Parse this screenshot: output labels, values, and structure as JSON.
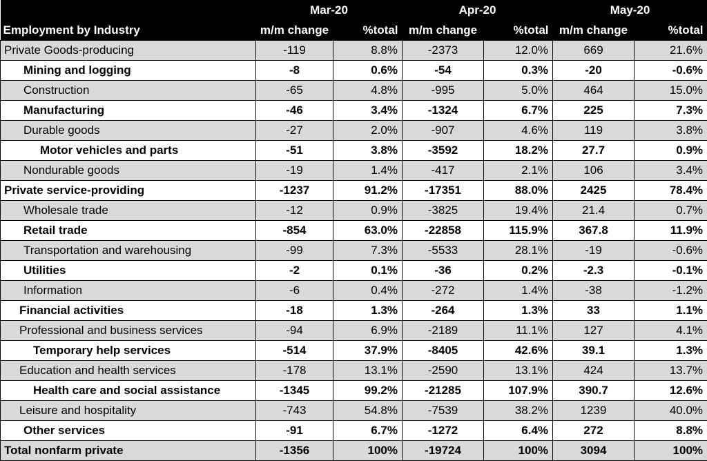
{
  "header": {
    "months": [
      "Mar-20",
      "Apr-20",
      "May-20"
    ],
    "label": "Employment by Industry",
    "change_label": "m/m change",
    "pct_label": "%total"
  },
  "rows": [
    {
      "label": "Private Goods-producing",
      "mar_change": "-119",
      "mar_pct": "8.8%",
      "apr_change": "-2373",
      "apr_pct": "12.0%",
      "may_change": "669",
      "may_pct": "21.6%"
    },
    {
      "label": "Mining and logging",
      "mar_change": "-8",
      "mar_pct": "0.6%",
      "apr_change": "-54",
      "apr_pct": "0.3%",
      "may_change": "-20",
      "may_pct": "-0.6%"
    },
    {
      "label": "Construction",
      "mar_change": "-65",
      "mar_pct": "4.8%",
      "apr_change": "-995",
      "apr_pct": "5.0%",
      "may_change": "464",
      "may_pct": "15.0%"
    },
    {
      "label": "Manufacturing",
      "mar_change": "-46",
      "mar_pct": "3.4%",
      "apr_change": "-1324",
      "apr_pct": "6.7%",
      "may_change": "225",
      "may_pct": "7.3%"
    },
    {
      "label": "Durable goods",
      "mar_change": "-27",
      "mar_pct": "2.0%",
      "apr_change": "-907",
      "apr_pct": "4.6%",
      "may_change": "119",
      "may_pct": "3.8%"
    },
    {
      "label": "Motor vehicles and parts",
      "mar_change": "-51",
      "mar_pct": "3.8%",
      "apr_change": "-3592",
      "apr_pct": "18.2%",
      "may_change": "27.7",
      "may_pct": "0.9%"
    },
    {
      "label": "Nondurable goods",
      "mar_change": "-19",
      "mar_pct": "1.4%",
      "apr_change": "-417",
      "apr_pct": "2.1%",
      "may_change": "106",
      "may_pct": "3.4%"
    },
    {
      "label": "Private service-providing",
      "mar_change": "-1237",
      "mar_pct": "91.2%",
      "apr_change": "-17351",
      "apr_pct": "88.0%",
      "may_change": "2425",
      "may_pct": "78.4%"
    },
    {
      "label": "Wholesale trade",
      "mar_change": "-12",
      "mar_pct": "0.9%",
      "apr_change": "-3825",
      "apr_pct": "19.4%",
      "may_change": "21.4",
      "may_pct": "0.7%"
    },
    {
      "label": "Retail trade",
      "mar_change": "-854",
      "mar_pct": "63.0%",
      "apr_change": "-22858",
      "apr_pct": "115.9%",
      "may_change": "367.8",
      "may_pct": "11.9%"
    },
    {
      "label": "Transportation and warehousing",
      "mar_change": "-99",
      "mar_pct": "7.3%",
      "apr_change": "-5533",
      "apr_pct": "28.1%",
      "may_change": "-19",
      "may_pct": "-0.6%"
    },
    {
      "label": "Utilities",
      "mar_change": "-2",
      "mar_pct": "0.1%",
      "apr_change": "-36",
      "apr_pct": "0.2%",
      "may_change": "-2.3",
      "may_pct": "-0.1%"
    },
    {
      "label": "Information",
      "mar_change": "-6",
      "mar_pct": "0.4%",
      "apr_change": "-272",
      "apr_pct": "1.4%",
      "may_change": "-38",
      "may_pct": "-1.2%"
    },
    {
      "label": "Financial activities",
      "mar_change": "-18",
      "mar_pct": "1.3%",
      "apr_change": "-264",
      "apr_pct": "1.3%",
      "may_change": "33",
      "may_pct": "1.1%"
    },
    {
      "label": "Professional and business services",
      "mar_change": "-94",
      "mar_pct": "6.9%",
      "apr_change": "-2189",
      "apr_pct": "11.1%",
      "may_change": "127",
      "may_pct": "4.1%"
    },
    {
      "label": "Temporary help services",
      "mar_change": "-514",
      "mar_pct": "37.9%",
      "apr_change": "-8405",
      "apr_pct": "42.6%",
      "may_change": "39.1",
      "may_pct": "1.3%"
    },
    {
      "label": "Education and health services",
      "mar_change": "-178",
      "mar_pct": "13.1%",
      "apr_change": "-2590",
      "apr_pct": "13.1%",
      "may_change": "424",
      "may_pct": "13.7%"
    },
    {
      "label": "Health care and social assistance",
      "mar_change": "-1345",
      "mar_pct": "99.2%",
      "apr_change": "-21285",
      "apr_pct": "107.9%",
      "may_change": "390.7",
      "may_pct": "12.6%"
    },
    {
      "label": "Leisure and hospitality",
      "mar_change": "-743",
      "mar_pct": "54.8%",
      "apr_change": "-7539",
      "apr_pct": "38.2%",
      "may_change": "1239",
      "may_pct": "40.0%"
    },
    {
      "label": "Other services",
      "mar_change": "-91",
      "mar_pct": "6.7%",
      "apr_change": "-1272",
      "apr_pct": "6.4%",
      "may_change": "272",
      "may_pct": "8.8%"
    },
    {
      "label": "Total nonfarm private",
      "mar_change": "-1356",
      "mar_pct": "100%",
      "apr_change": "-19724",
      "apr_pct": "100%",
      "may_change": "3094",
      "may_pct": "100%"
    }
  ]
}
